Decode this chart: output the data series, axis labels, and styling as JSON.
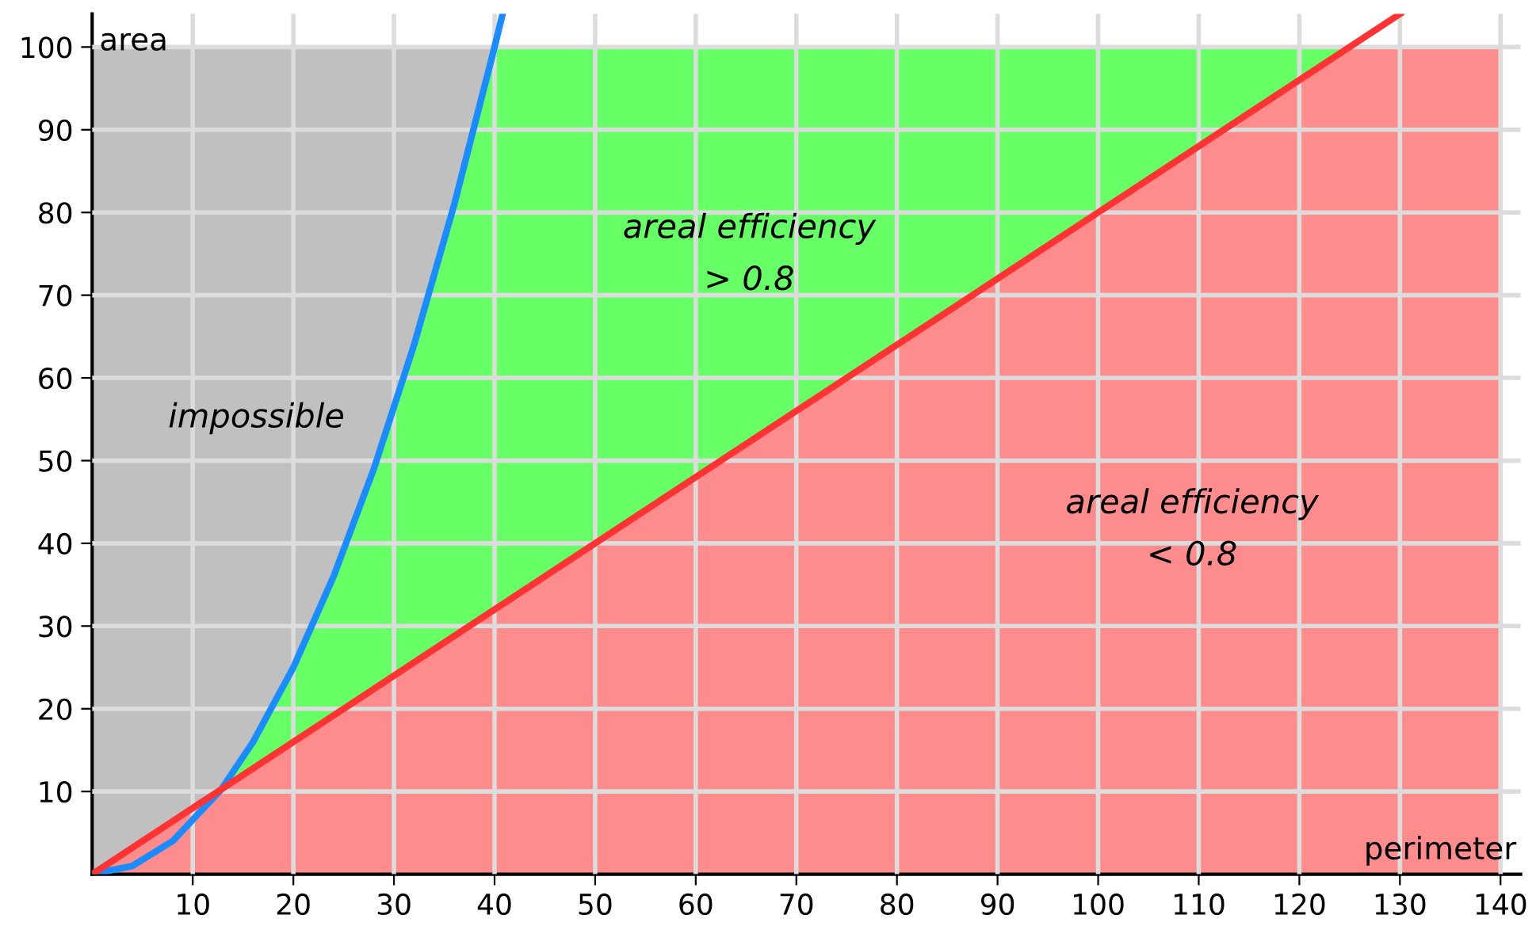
{
  "chart_data": {
    "type": "area",
    "xlabel": "perimeter",
    "ylabel": "area",
    "xlim": [
      0,
      142
    ],
    "ylim": [
      0,
      104
    ],
    "xticks": [
      10,
      20,
      30,
      40,
      50,
      60,
      70,
      80,
      90,
      100,
      110,
      120,
      130,
      140
    ],
    "yticks": [
      10,
      20,
      30,
      40,
      50,
      60,
      70,
      80,
      90,
      100
    ],
    "grid": true,
    "series": [
      {
        "color": "#c0c0c0",
        "x": [
          0,
          40
        ],
        "values": [
          100,
          100
        ]
      },
      {
        "color": "#66ff66",
        "x": [
          12.8,
          16,
          20,
          24,
          28,
          32,
          36,
          40,
          125
        ],
        "values": [
          10.2,
          16,
          25,
          36,
          49,
          64,
          81,
          100,
          100
        ]
      },
      {
        "color": "#ff8c8c",
        "x": [
          0,
          125,
          140
        ],
        "values": [
          0,
          100,
          100
        ]
      },
      {
        "type": "line",
        "color": "#1a8cff",
        "x": [
          0,
          4,
          8,
          12.8,
          16,
          20,
          24,
          28,
          32,
          36,
          40,
          40.8
        ],
        "values": [
          0,
          1,
          4,
          10.2,
          16,
          25,
          36,
          49,
          64,
          81,
          100,
          104
        ]
      },
      {
        "type": "line",
        "color": "#ff3333",
        "x": [
          0,
          130
        ],
        "values": [
          0,
          104
        ]
      }
    ],
    "annotations": [
      "impossible",
      "areal efficiency\n> 0.8",
      "areal efficiency\n< 0.8"
    ]
  }
}
